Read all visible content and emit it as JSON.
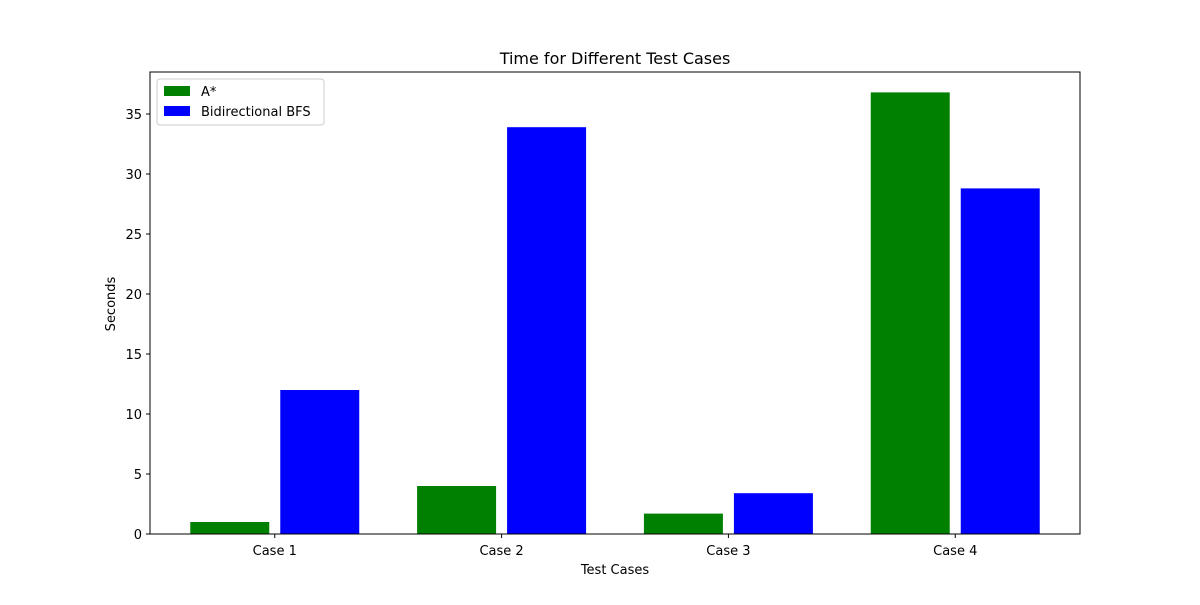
{
  "chart_data": {
    "type": "bar",
    "title": "Time for Different Test Cases",
    "xlabel": "Test Cases",
    "ylabel": "Seconds",
    "categories": [
      "Case 1",
      "Case 2",
      "Case 3",
      "Case 4"
    ],
    "series": [
      {
        "name": "A*",
        "color": "#008000",
        "values": [
          1.0,
          4.0,
          1.7,
          36.8
        ]
      },
      {
        "name": "Bidirectional BFS",
        "color": "#0000ff",
        "values": [
          12.0,
          33.9,
          3.4,
          28.8
        ]
      }
    ],
    "ylim": [
      0,
      38.5
    ],
    "yticks": [
      0,
      5,
      10,
      15,
      20,
      25,
      30,
      35
    ],
    "grid": false,
    "legend_position": "top-left"
  }
}
